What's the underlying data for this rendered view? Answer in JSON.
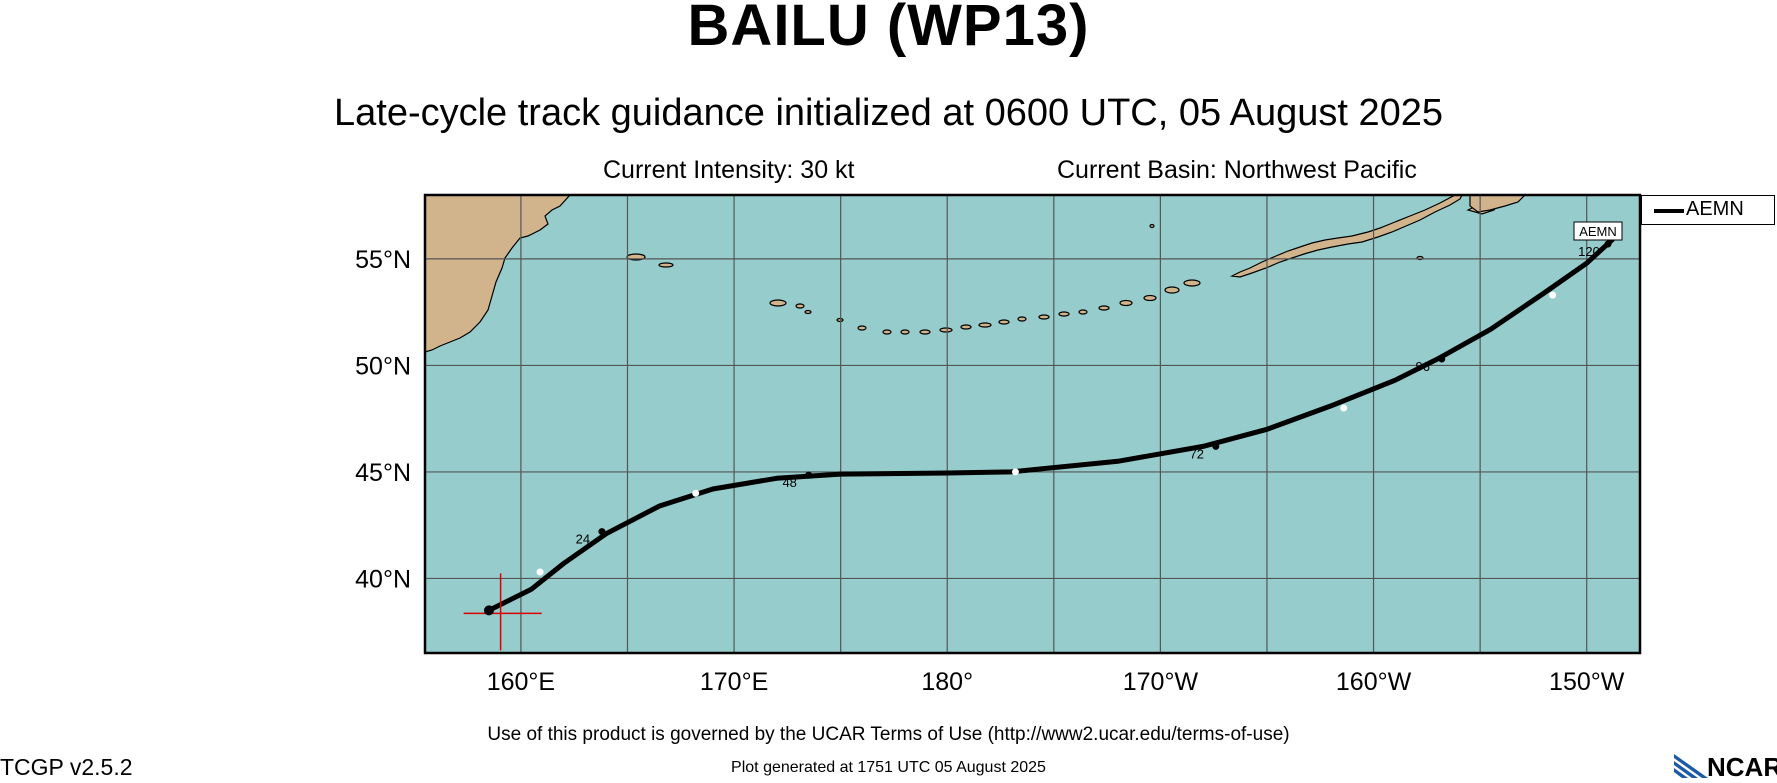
{
  "header": {
    "title": "BAILU (WP13)",
    "subtitle": "Late-cycle track guidance initialized at 0600 UTC, 05 August 2025",
    "intensity": "Current Intensity: 30 kt",
    "basin": "Current Basin: Northwest Pacific"
  },
  "map": {
    "lon_range_east": [
      155.5,
      212.5
    ],
    "lat_range": [
      36.5,
      58
    ],
    "ocean_color": "#96cccc",
    "land_color": "#d2b48c",
    "grid_color": "#555555",
    "y_ticks": [
      {
        "lat": 55,
        "label": "55°N"
      },
      {
        "lat": 50,
        "label": "50°N"
      },
      {
        "lat": 45,
        "label": "45°N"
      },
      {
        "lat": 40,
        "label": "40°N"
      }
    ],
    "x_ticks": [
      {
        "lon": 160,
        "label": "160°E"
      },
      {
        "lon": 170,
        "label": "170°E"
      },
      {
        "lon": 180,
        "label": "180°"
      },
      {
        "lon": 190,
        "label": "170°W"
      },
      {
        "lon": 200,
        "label": "160°W"
      },
      {
        "lon": 210,
        "label": "150°W"
      }
    ],
    "grid_lons": [
      160,
      165,
      170,
      175,
      180,
      185,
      190,
      195,
      200,
      205,
      210
    ],
    "grid_lats": [
      40,
      45,
      50,
      55
    ],
    "current_position": {
      "lon": 159.0,
      "lat": 38.5,
      "marker_color": "#dd0000"
    }
  },
  "chart_data": {
    "type": "line",
    "series": [
      {
        "name": "AEMN",
        "color": "#000000",
        "points": [
          {
            "lon": 158.5,
            "lat": 38.5
          },
          {
            "lon": 160.5,
            "lat": 39.5
          },
          {
            "lon": 162.0,
            "lat": 40.7
          },
          {
            "lon": 164.0,
            "lat": 42.1
          },
          {
            "lon": 166.5,
            "lat": 43.4
          },
          {
            "lon": 169.0,
            "lat": 44.2
          },
          {
            "lon": 172.0,
            "lat": 44.7
          },
          {
            "lon": 175.0,
            "lat": 44.9
          },
          {
            "lon": 180.0,
            "lat": 44.95
          },
          {
            "lon": 183.0,
            "lat": 45.0
          },
          {
            "lon": 188.0,
            "lat": 45.5
          },
          {
            "lon": 192.0,
            "lat": 46.2
          },
          {
            "lon": 195.0,
            "lat": 47.0
          },
          {
            "lon": 198.0,
            "lat": 48.1
          },
          {
            "lon": 201.0,
            "lat": 49.3
          },
          {
            "lon": 203.0,
            "lat": 50.3
          },
          {
            "lon": 205.5,
            "lat": 51.7
          },
          {
            "lon": 208.0,
            "lat": 53.4
          },
          {
            "lon": 210.0,
            "lat": 54.8
          },
          {
            "lon": 211.2,
            "lat": 55.9
          }
        ],
        "markers": [
          {
            "lon": 160.9,
            "lat": 40.3,
            "fill": "#ffffff"
          },
          {
            "lon": 163.8,
            "lat": 42.2,
            "fill": "#000000",
            "label": "24"
          },
          {
            "lon": 168.2,
            "lat": 44.0,
            "fill": "#ffffff"
          },
          {
            "lon": 173.5,
            "lat": 44.85,
            "fill": "#000000",
            "label": "48"
          },
          {
            "lon": 183.2,
            "lat": 45.0,
            "fill": "#ffffff"
          },
          {
            "lon": 192.6,
            "lat": 46.2,
            "fill": "#000000",
            "label": "72"
          },
          {
            "lon": 198.6,
            "lat": 48.0,
            "fill": "#ffffff"
          },
          {
            "lon": 203.2,
            "lat": 50.3,
            "fill": "#000000",
            "label": "96"
          },
          {
            "lon": 208.4,
            "lat": 53.3,
            "fill": "#ffffff"
          },
          {
            "lon": 211.0,
            "lat": 55.7,
            "fill": "#000000",
            "label": "120"
          }
        ]
      }
    ]
  },
  "legend": {
    "items": [
      {
        "label": "AEMN",
        "color": "#000000"
      }
    ],
    "end_tag": "AEMN"
  },
  "footer": {
    "terms": "Use of this product is governed by the UCAR Terms of Use (http://www2.ucar.edu/terms-of-use)",
    "version": "TCGP v2.5.2",
    "generated": "Plot generated at 1751 UTC   05 August 2025",
    "logo_text": "NCAR"
  }
}
